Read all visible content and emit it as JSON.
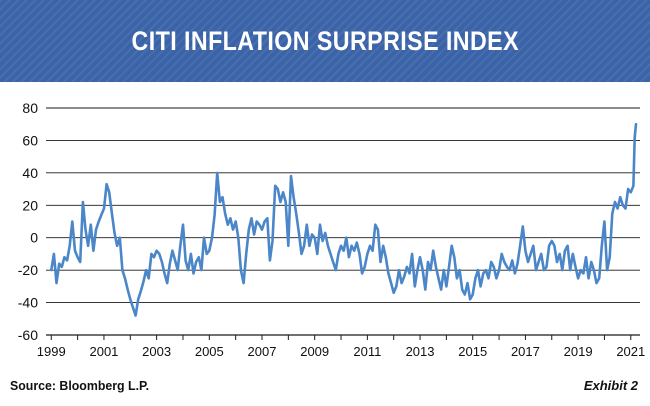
{
  "header": {
    "title": "CITI INFLATION SURPRISE INDEX"
  },
  "footer": {
    "source": "Source: Bloomberg L.P.",
    "exhibit": "Exhibit 2"
  },
  "colors": {
    "banner": "#3b63a8",
    "line": "#4a86c8"
  },
  "chart_data": {
    "type": "line",
    "title": "CITI INFLATION SURPRISE INDEX",
    "xlabel": "",
    "ylabel": "",
    "xlim": [
      1998.8,
      2021.35
    ],
    "ylim": [
      -60,
      80
    ],
    "yticks": [
      80,
      60,
      40,
      20,
      0,
      -20,
      -40,
      -60
    ],
    "xticks": [
      "1999",
      "2001",
      "2003",
      "2005",
      "2007",
      "2009",
      "2011",
      "2013",
      "2015",
      "2017",
      "2019",
      "2021"
    ],
    "grid": "horizontal",
    "series": [
      {
        "x": [
          1999.0,
          1999.1,
          1999.2,
          1999.3,
          1999.4,
          1999.5,
          1999.6,
          1999.7,
          1999.8,
          1999.9,
          2000.0,
          2000.1,
          2000.2,
          2000.3,
          2000.4,
          2000.5,
          2000.6,
          2000.7,
          2000.8,
          2000.9,
          2001.0,
          2001.1,
          2001.2,
          2001.3,
          2001.4,
          2001.5,
          2001.6,
          2001.7,
          2001.8,
          2001.9,
          2002.0,
          2002.1,
          2002.2,
          2002.3,
          2002.4,
          2002.5,
          2002.6,
          2002.7,
          2002.8,
          2002.9,
          2003.0,
          2003.1,
          2003.2,
          2003.3,
          2003.4,
          2003.5,
          2003.6,
          2003.7,
          2003.8,
          2003.9,
          2004.0,
          2004.1,
          2004.2,
          2004.3,
          2004.4,
          2004.5,
          2004.6,
          2004.7,
          2004.8,
          2004.9,
          2005.0,
          2005.1,
          2005.2,
          2005.3,
          2005.4,
          2005.5,
          2005.6,
          2005.7,
          2005.8,
          2005.9,
          2006.0,
          2006.1,
          2006.2,
          2006.3,
          2006.4,
          2006.5,
          2006.6,
          2006.7,
          2006.8,
          2006.9,
          2007.0,
          2007.1,
          2007.2,
          2007.3,
          2007.4,
          2007.5,
          2007.6,
          2007.7,
          2007.8,
          2007.9,
          2008.0,
          2008.1,
          2008.2,
          2008.3,
          2008.4,
          2008.5,
          2008.6,
          2008.7,
          2008.8,
          2008.9,
          2009.0,
          2009.1,
          2009.2,
          2009.3,
          2009.4,
          2009.5,
          2009.6,
          2009.7,
          2009.8,
          2009.9,
          2010.0,
          2010.1,
          2010.2,
          2010.3,
          2010.4,
          2010.5,
          2010.6,
          2010.7,
          2010.8,
          2010.9,
          2011.0,
          2011.1,
          2011.2,
          2011.3,
          2011.4,
          2011.5,
          2011.6,
          2011.7,
          2011.8,
          2011.9,
          2012.0,
          2012.1,
          2012.2,
          2012.3,
          2012.4,
          2012.5,
          2012.6,
          2012.7,
          2012.8,
          2012.9,
          2013.0,
          2013.1,
          2013.2,
          2013.3,
          2013.4,
          2013.5,
          2013.6,
          2013.7,
          2013.8,
          2013.9,
          2014.0,
          2014.1,
          2014.2,
          2014.3,
          2014.4,
          2014.5,
          2014.6,
          2014.7,
          2014.8,
          2014.9,
          2015.0,
          2015.1,
          2015.2,
          2015.3,
          2015.4,
          2015.5,
          2015.6,
          2015.7,
          2015.8,
          2015.9,
          2016.0,
          2016.1,
          2016.2,
          2016.3,
          2016.4,
          2016.5,
          2016.6,
          2016.7,
          2016.8,
          2016.9,
          2017.0,
          2017.1,
          2017.2,
          2017.3,
          2017.4,
          2017.5,
          2017.6,
          2017.7,
          2017.8,
          2017.9,
          2018.0,
          2018.1,
          2018.2,
          2018.3,
          2018.4,
          2018.5,
          2018.6,
          2018.7,
          2018.8,
          2018.9,
          2019.0,
          2019.1,
          2019.2,
          2019.3,
          2019.4,
          2019.5,
          2019.6,
          2019.7,
          2019.8,
          2019.9,
          2020.0,
          2020.1,
          2020.2,
          2020.3,
          2020.4,
          2020.5,
          2020.6,
          2020.7,
          2020.8,
          2020.9,
          2021.0,
          2021.1,
          2021.15,
          2021.2
        ],
        "y": [
          -20,
          -10,
          -28,
          -16,
          -18,
          -12,
          -14,
          -5,
          10,
          -8,
          -12,
          -15,
          22,
          5,
          -5,
          8,
          -8,
          5,
          10,
          14,
          18,
          33,
          28,
          15,
          3,
          -5,
          0,
          -20,
          -25,
          -32,
          -38,
          -43,
          -48,
          -38,
          -33,
          -27,
          -20,
          -25,
          -10,
          -12,
          -8,
          -10,
          -15,
          -22,
          -28,
          -16,
          -8,
          -14,
          -20,
          -5,
          8,
          -14,
          -20,
          -10,
          -22,
          -15,
          -12,
          -20,
          0,
          -10,
          -8,
          0,
          14,
          40,
          22,
          25,
          15,
          8,
          12,
          5,
          10,
          0,
          -20,
          -28,
          -10,
          5,
          12,
          2,
          10,
          8,
          5,
          10,
          12,
          -14,
          -2,
          32,
          30,
          22,
          28,
          22,
          -5,
          38,
          25,
          15,
          3,
          -10,
          -5,
          8,
          -5,
          2,
          0,
          -10,
          8,
          -2,
          3,
          -5,
          -10,
          -15,
          -20,
          -10,
          -5,
          -8,
          0,
          -12,
          -5,
          -8,
          -3,
          -10,
          -22,
          -18,
          -10,
          -5,
          -8,
          8,
          5,
          -15,
          -5,
          -12,
          -22,
          -28,
          -34,
          -30,
          -20,
          -28,
          -24,
          -18,
          -22,
          -10,
          -30,
          -20,
          -12,
          -20,
          -32,
          -15,
          -20,
          -8,
          -18,
          -25,
          -32,
          -20,
          -30,
          -18,
          -5,
          -12,
          -25,
          -20,
          -32,
          -35,
          -28,
          -38,
          -35,
          -25,
          -20,
          -30,
          -22,
          -20,
          -25,
          -15,
          -18,
          -25,
          -20,
          -10,
          -15,
          -18,
          -20,
          -14,
          -22,
          -16,
          -5,
          7,
          -8,
          -15,
          -10,
          -5,
          -20,
          -15,
          -10,
          -20,
          -18,
          -5,
          -2,
          -5,
          -15,
          -10,
          -20,
          -8,
          -5,
          -20,
          -10,
          -18,
          -25,
          -20,
          -22,
          -12,
          -25,
          -15,
          -20,
          -28,
          -25,
          -5,
          10,
          -20,
          -12,
          15,
          22,
          18,
          25,
          20,
          18,
          30,
          28,
          32,
          62,
          70
        ]
      }
    ]
  }
}
